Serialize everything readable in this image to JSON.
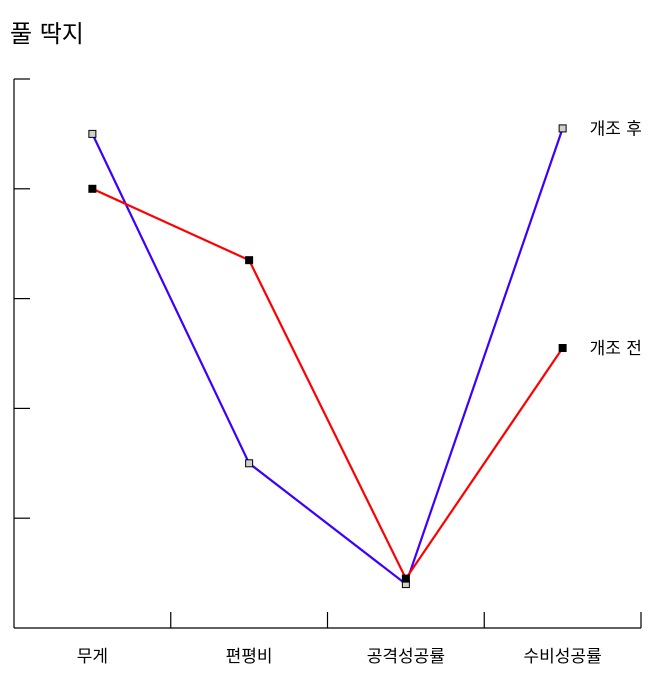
{
  "title": "풀 딱지",
  "chart_data": {
    "type": "line",
    "categories": [
      "무게",
      "편평비",
      "공격성공률",
      "수비성공률"
    ],
    "grid": false,
    "ylim": [
      0,
      5
    ],
    "series": [
      {
        "name": "개조 후",
        "color": "#3b00ff",
        "marker_fill": "#d0d0d0",
        "values": [
          4.5,
          1.5,
          0.4,
          4.55
        ]
      },
      {
        "name": "개조 전",
        "color": "#ff0000",
        "marker_fill": "#000000",
        "values": [
          4.0,
          3.35,
          0.45,
          2.55
        ]
      }
    ]
  }
}
